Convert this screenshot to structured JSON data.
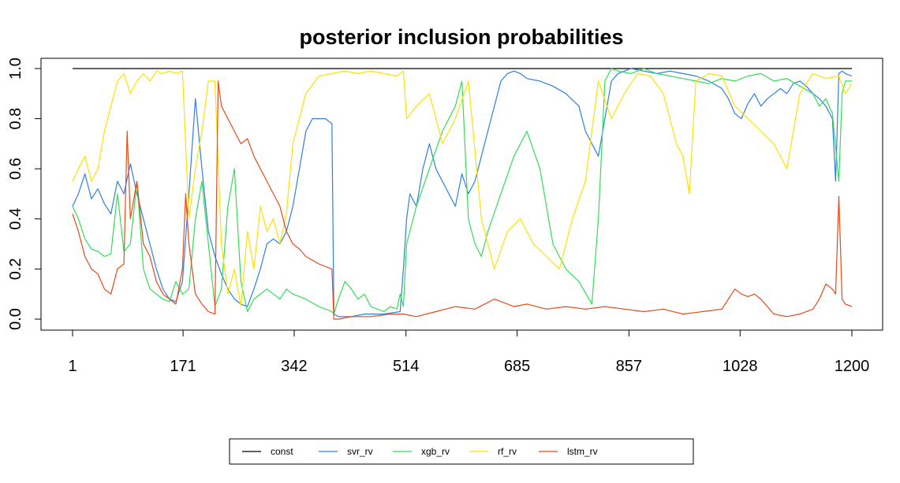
{
  "chart_data": {
    "type": "line",
    "title": "posterior inclusion probabilities",
    "xlabel": "",
    "ylabel": "",
    "xlim": [
      1,
      1200
    ],
    "ylim": [
      0,
      1
    ],
    "xticks": [
      1,
      171,
      342,
      514,
      685,
      857,
      1028,
      1200
    ],
    "xtick_labels": [
      "1",
      "171",
      "342",
      "514",
      "685",
      "857",
      "1028",
      "1200"
    ],
    "yticks": [
      0,
      0.2,
      0.4,
      0.6,
      0.8,
      1
    ],
    "ytick_labels": [
      "0.0",
      "0.2",
      "0.4",
      "0.6",
      "0.8",
      "1.0"
    ],
    "grid": false,
    "legend": {
      "position": "bottom",
      "horizontal": true
    },
    "series": [
      {
        "name": "const",
        "color": "#000000",
        "x": [
          1,
          1200
        ],
        "y": [
          1.0,
          1.0
        ]
      },
      {
        "name": "svr_rv",
        "color": "#2F7FE0",
        "x": [
          1,
          10,
          20,
          30,
          40,
          50,
          60,
          70,
          80,
          90,
          100,
          110,
          120,
          130,
          140,
          150,
          160,
          170,
          180,
          190,
          200,
          210,
          220,
          230,
          240,
          250,
          260,
          270,
          280,
          290,
          300,
          310,
          320,
          330,
          340,
          350,
          360,
          370,
          380,
          390,
          400,
          403,
          410,
          430,
          450,
          480,
          505,
          510,
          515,
          520,
          530,
          540,
          550,
          560,
          570,
          580,
          590,
          600,
          610,
          620,
          630,
          640,
          650,
          660,
          670,
          680,
          690,
          700,
          720,
          740,
          760,
          780,
          790,
          800,
          810,
          820,
          830,
          840,
          850,
          860,
          880,
          900,
          920,
          940,
          960,
          980,
          1000,
          1010,
          1020,
          1030,
          1040,
          1050,
          1060,
          1070,
          1080,
          1090,
          1100,
          1110,
          1120,
          1130,
          1140,
          1150,
          1160,
          1170,
          1175,
          1180,
          1185,
          1190,
          1200
        ],
        "y": [
          0.45,
          0.5,
          0.58,
          0.48,
          0.52,
          0.46,
          0.42,
          0.55,
          0.5,
          0.62,
          0.5,
          0.4,
          0.3,
          0.2,
          0.12,
          0.08,
          0.07,
          0.15,
          0.5,
          0.88,
          0.6,
          0.35,
          0.25,
          0.18,
          0.12,
          0.08,
          0.06,
          0.05,
          0.12,
          0.2,
          0.3,
          0.32,
          0.3,
          0.35,
          0.45,
          0.6,
          0.75,
          0.8,
          0.8,
          0.8,
          0.78,
          0.02,
          0.01,
          0.01,
          0.02,
          0.02,
          0.03,
          0.2,
          0.4,
          0.5,
          0.45,
          0.6,
          0.7,
          0.6,
          0.55,
          0.5,
          0.45,
          0.58,
          0.5,
          0.55,
          0.65,
          0.75,
          0.85,
          0.95,
          0.98,
          0.99,
          0.98,
          0.96,
          0.95,
          0.93,
          0.9,
          0.85,
          0.75,
          0.7,
          0.65,
          0.8,
          0.95,
          0.98,
          0.99,
          1.0,
          0.99,
          0.98,
          0.99,
          0.98,
          0.97,
          0.95,
          0.92,
          0.88,
          0.82,
          0.8,
          0.86,
          0.9,
          0.85,
          0.88,
          0.9,
          0.92,
          0.9,
          0.94,
          0.95,
          0.93,
          0.9,
          0.88,
          0.85,
          0.8,
          0.55,
          0.98,
          0.99,
          0.98,
          0.97
        ]
      },
      {
        "name": "xgb_rv",
        "color": "#33DD55",
        "x": [
          1,
          10,
          20,
          30,
          40,
          50,
          60,
          70,
          80,
          90,
          100,
          110,
          120,
          130,
          140,
          150,
          160,
          170,
          180,
          190,
          200,
          210,
          220,
          230,
          240,
          250,
          260,
          270,
          280,
          290,
          300,
          310,
          320,
          330,
          340,
          360,
          380,
          400,
          403,
          410,
          420,
          430,
          440,
          450,
          460,
          470,
          480,
          490,
          500,
          505,
          510,
          515,
          530,
          550,
          570,
          590,
          600,
          610,
          620,
          630,
          640,
          660,
          680,
          700,
          720,
          740,
          760,
          780,
          800,
          810,
          820,
          830,
          840,
          860,
          880,
          900,
          920,
          940,
          960,
          980,
          1000,
          1020,
          1040,
          1060,
          1080,
          1100,
          1120,
          1140,
          1150,
          1160,
          1170,
          1180,
          1185,
          1190,
          1200
        ],
        "y": [
          0.45,
          0.4,
          0.32,
          0.28,
          0.27,
          0.25,
          0.26,
          0.5,
          0.27,
          0.3,
          0.55,
          0.2,
          0.12,
          0.1,
          0.08,
          0.07,
          0.15,
          0.1,
          0.12,
          0.4,
          0.55,
          0.3,
          0.05,
          0.12,
          0.45,
          0.6,
          0.15,
          0.03,
          0.08,
          0.1,
          0.12,
          0.1,
          0.08,
          0.12,
          0.1,
          0.08,
          0.05,
          0.03,
          0.02,
          0.08,
          0.15,
          0.12,
          0.08,
          0.1,
          0.05,
          0.04,
          0.03,
          0.05,
          0.04,
          0.1,
          0.05,
          0.3,
          0.45,
          0.6,
          0.75,
          0.85,
          0.95,
          0.4,
          0.3,
          0.25,
          0.35,
          0.5,
          0.65,
          0.75,
          0.6,
          0.3,
          0.2,
          0.15,
          0.06,
          0.4,
          0.95,
          1.0,
          0.99,
          0.98,
          1.0,
          0.98,
          0.97,
          0.96,
          0.95,
          0.94,
          0.96,
          0.95,
          0.97,
          0.98,
          0.95,
          0.96,
          0.93,
          0.9,
          0.85,
          0.88,
          0.82,
          0.55,
          0.9,
          0.95,
          0.95
        ]
      },
      {
        "name": "rf_rv",
        "color": "#FFE000",
        "x": [
          1,
          10,
          20,
          30,
          40,
          50,
          60,
          70,
          80,
          90,
          100,
          110,
          120,
          130,
          140,
          150,
          160,
          170,
          180,
          190,
          200,
          210,
          220,
          230,
          240,
          250,
          260,
          270,
          280,
          290,
          300,
          310,
          320,
          330,
          340,
          360,
          380,
          400,
          420,
          440,
          460,
          480,
          500,
          505,
          510,
          515,
          530,
          550,
          570,
          590,
          610,
          630,
          650,
          670,
          690,
          710,
          730,
          750,
          770,
          790,
          810,
          830,
          850,
          870,
          890,
          910,
          920,
          930,
          940,
          950,
          960,
          980,
          1000,
          1020,
          1040,
          1060,
          1080,
          1100,
          1120,
          1140,
          1160,
          1180,
          1190,
          1200
        ],
        "y": [
          0.55,
          0.6,
          0.65,
          0.55,
          0.6,
          0.75,
          0.85,
          0.95,
          0.98,
          0.9,
          0.95,
          0.98,
          0.95,
          0.99,
          0.98,
          0.99,
          0.98,
          0.99,
          0.4,
          0.6,
          0.75,
          0.95,
          0.95,
          0.3,
          0.1,
          0.2,
          0.05,
          0.35,
          0.2,
          0.45,
          0.35,
          0.4,
          0.3,
          0.42,
          0.7,
          0.9,
          0.97,
          0.98,
          0.99,
          0.98,
          0.99,
          0.98,
          0.97,
          0.98,
          0.99,
          0.8,
          0.85,
          0.9,
          0.7,
          0.8,
          0.95,
          0.4,
          0.2,
          0.35,
          0.4,
          0.3,
          0.25,
          0.2,
          0.4,
          0.55,
          0.95,
          0.8,
          0.9,
          0.98,
          0.97,
          0.9,
          0.8,
          0.7,
          0.65,
          0.5,
          0.95,
          0.98,
          0.97,
          0.85,
          0.8,
          0.75,
          0.7,
          0.6,
          0.9,
          0.98,
          0.96,
          0.97,
          0.9,
          0.94
        ]
      },
      {
        "name": "lstm_rv",
        "color": "#E64A19",
        "x": [
          1,
          10,
          20,
          30,
          40,
          50,
          60,
          70,
          80,
          85,
          90,
          100,
          110,
          120,
          130,
          140,
          150,
          160,
          170,
          175,
          180,
          190,
          200,
          210,
          220,
          225,
          230,
          240,
          250,
          260,
          270,
          280,
          290,
          300,
          310,
          320,
          330,
          340,
          350,
          360,
          380,
          400,
          403,
          410,
          430,
          460,
          490,
          510,
          530,
          560,
          590,
          620,
          650,
          680,
          700,
          730,
          760,
          790,
          820,
          850,
          880,
          910,
          940,
          970,
          1000,
          1010,
          1020,
          1030,
          1040,
          1050,
          1060,
          1080,
          1100,
          1120,
          1140,
          1150,
          1160,
          1170,
          1175,
          1180,
          1185,
          1190,
          1200
        ],
        "y": [
          0.42,
          0.35,
          0.25,
          0.2,
          0.18,
          0.12,
          0.1,
          0.2,
          0.22,
          0.75,
          0.4,
          0.55,
          0.3,
          0.25,
          0.15,
          0.1,
          0.08,
          0.06,
          0.2,
          0.5,
          0.3,
          0.1,
          0.06,
          0.03,
          0.02,
          0.95,
          0.85,
          0.8,
          0.75,
          0.7,
          0.72,
          0.65,
          0.6,
          0.55,
          0.5,
          0.45,
          0.35,
          0.3,
          0.28,
          0.25,
          0.22,
          0.2,
          0.0,
          0.0,
          0.01,
          0.01,
          0.02,
          0.02,
          0.01,
          0.03,
          0.05,
          0.04,
          0.08,
          0.05,
          0.06,
          0.04,
          0.05,
          0.04,
          0.05,
          0.04,
          0.03,
          0.04,
          0.02,
          0.03,
          0.04,
          0.08,
          0.12,
          0.1,
          0.09,
          0.1,
          0.08,
          0.02,
          0.01,
          0.02,
          0.04,
          0.08,
          0.14,
          0.12,
          0.1,
          0.49,
          0.08,
          0.06,
          0.05
        ]
      }
    ]
  }
}
